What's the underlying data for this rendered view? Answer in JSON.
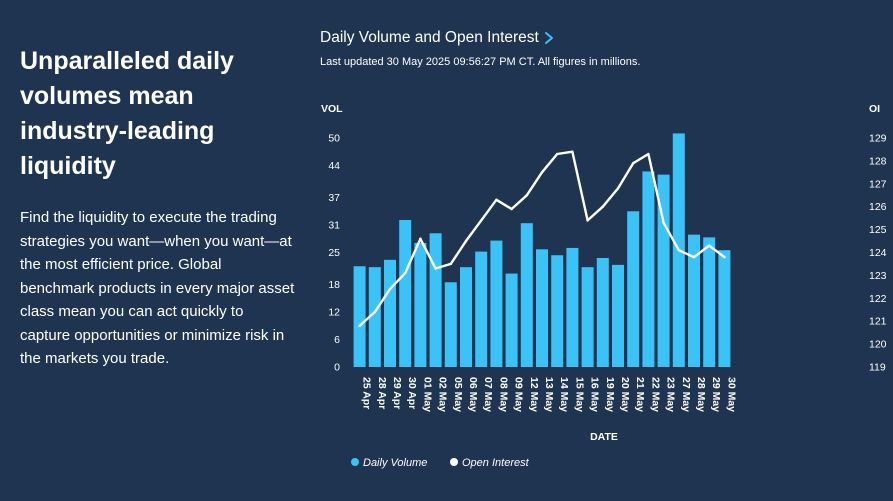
{
  "hero": {
    "headline": "Unparalleled daily volumes mean industry-leading liquidity",
    "body": "Find the liquidity to execute the trading strategies you want—when you want—at the most efficient price. Global benchmark products in every major asset class mean you can act quickly to capture opportunities or minimize risk in the markets you trade."
  },
  "chart_header": {
    "title": "Daily Volume and Open Interest",
    "subtitle": "Last updated 30 May 2025 09:56:27 PM CT. All figures in millions."
  },
  "colors": {
    "background": "#1e3450",
    "bar": "#3bc3f7",
    "line": "#ffffff",
    "chevron": "#3bc3f7"
  },
  "chart_data": {
    "type": "bar+line",
    "xlabel": "DATE",
    "ylabel_left": "VOL",
    "ylabel_right": "OI",
    "categories": [
      "25 Apr",
      "28 Apr",
      "29 Apr",
      "30 Apr",
      "01 May",
      "02 May",
      "05 May",
      "06 May",
      "07 May",
      "08 May",
      "09 May",
      "12 May",
      "13 May",
      "14 May",
      "15 May",
      "16 May",
      "19 May",
      "20 May",
      "21 May",
      "22 May",
      "23 May",
      "27 May",
      "28 May",
      "29 May",
      "30 May"
    ],
    "left_axis": {
      "ticks": [
        0,
        6,
        12,
        18,
        25,
        31,
        37,
        44,
        50
      ],
      "ylim": [
        0,
        50
      ]
    },
    "right_axis": {
      "ticks": [
        119,
        120,
        121,
        122,
        123,
        124,
        125,
        126,
        127,
        128,
        129
      ],
      "ylim": [
        119,
        129
      ]
    },
    "series": [
      {
        "name": "Daily Volume",
        "type": "bar",
        "axis": "left",
        "values": [
          22.0,
          21.8,
          23.4,
          32.1,
          27.1,
          29.2,
          18.5,
          21.8,
          25.2,
          27.6,
          20.4,
          31.4,
          25.7,
          24.4,
          26.0,
          21.8,
          23.8,
          22.3,
          34.0,
          42.7,
          42.0,
          51.0,
          28.9,
          28.3,
          25.5
        ]
      },
      {
        "name": "Open Interest",
        "type": "line",
        "axis": "right",
        "values": [
          120.8,
          121.4,
          122.4,
          123.1,
          124.6,
          123.3,
          123.5,
          124.5,
          125.4,
          126.3,
          125.9,
          126.5,
          127.5,
          128.3,
          128.4,
          125.4,
          126.0,
          126.8,
          127.9,
          128.3,
          125.3,
          124.1,
          123.8,
          124.3,
          123.8
        ]
      }
    ],
    "legend": {
      "position": "bottom-left",
      "entries": [
        "Daily Volume",
        "Open Interest"
      ]
    }
  }
}
